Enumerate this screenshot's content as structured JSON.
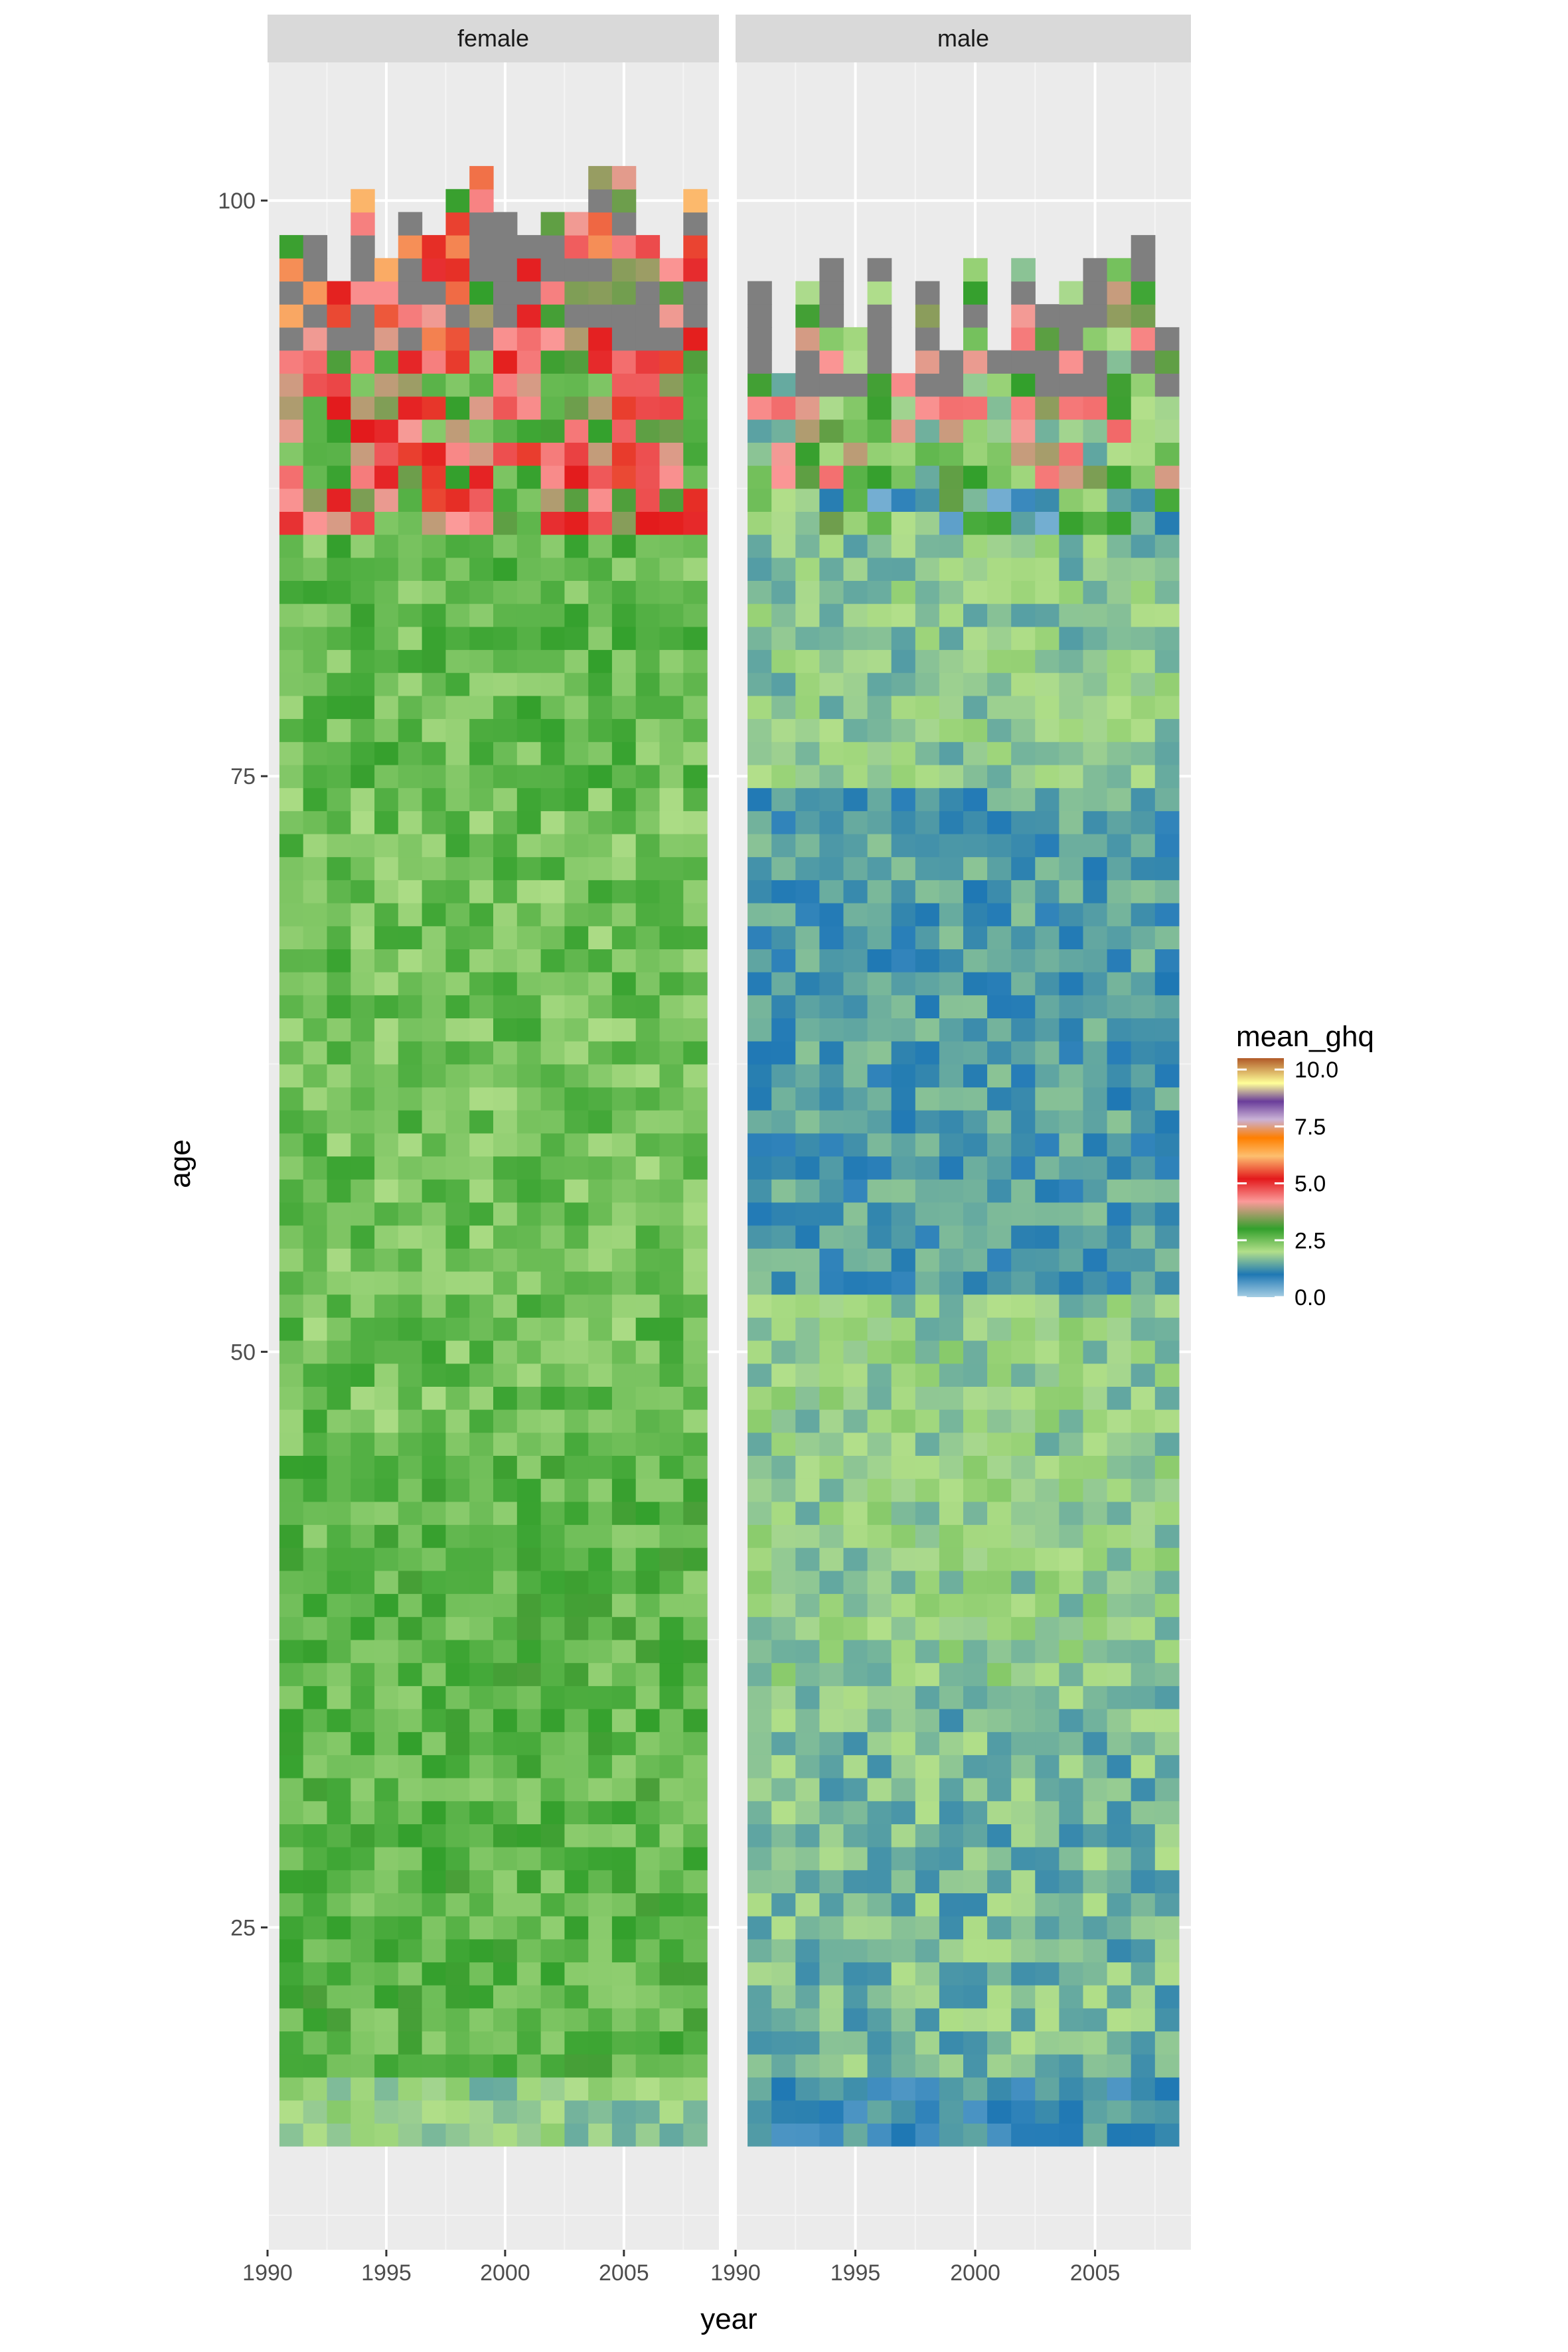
{
  "chart_data": {
    "type": "heatmap",
    "facet_by": "sex",
    "facets": [
      "female",
      "male"
    ],
    "x_label": "year",
    "y_label": "age",
    "x_range": [
      1990,
      2009
    ],
    "y_range": [
      11,
      106
    ],
    "x_ticks": [
      1990,
      1995,
      2000,
      2005
    ],
    "x_tick_labels": [
      "1990",
      "1995",
      "2000",
      "2005"
    ],
    "y_ticks": [
      25,
      50,
      75,
      100
    ],
    "y_tick_labels": [
      "25",
      "50",
      "75",
      "100"
    ],
    "years": [
      1991,
      1992,
      1993,
      1994,
      1995,
      1996,
      1997,
      1998,
      1999,
      2000,
      2001,
      2002,
      2003,
      2004,
      2005,
      2006,
      2007,
      2008
    ],
    "age_min": 16,
    "age_max": 101,
    "grid": true,
    "panel_background": "#ebebeb",
    "strip_background": "#d9d9d9",
    "legend": {
      "title": "mean_ghq",
      "position": "right",
      "labels": [
        "10.0",
        "7.5",
        "5.0",
        "2.5",
        "0.0"
      ],
      "ticks": [
        10.0,
        7.5,
        5.0,
        2.5,
        0.0
      ],
      "range": [
        0,
        10.5
      ],
      "palette": "Paired",
      "stops": [
        {
          "value": 0.0,
          "color": "#a6cee3"
        },
        {
          "value": 1.0,
          "color": "#1f78b4"
        },
        {
          "value": 2.0,
          "color": "#b2df8a"
        },
        {
          "value": 3.0,
          "color": "#33a02c"
        },
        {
          "value": 4.2,
          "color": "#fb9a99"
        },
        {
          "value": 5.2,
          "color": "#e31a1c"
        },
        {
          "value": 6.2,
          "color": "#fdbf6f"
        },
        {
          "value": 7.0,
          "color": "#ff7f00"
        },
        {
          "value": 7.8,
          "color": "#cab2d6"
        },
        {
          "value": 8.6,
          "color": "#6a3d9a"
        },
        {
          "value": 9.4,
          "color": "#ffff99"
        },
        {
          "value": 10.5,
          "color": "#b15928"
        }
      ]
    },
    "na_color": "#7f7f7f",
    "cell_colors": {
      "female": {
        "baseline_low_ages": "#9fd38a",
        "baseline_mid_ages": "#5fb446",
        "baseline_high_ages": "#e58c7c"
      },
      "male": {
        "baseline_low_ages": "#7aa9c8",
        "baseline_mid_ages": "#a7d594",
        "baseline_high_ages": "#3f88bf"
      }
    },
    "series": [
      {
        "facet": "female",
        "description_of_pattern": "mostly green (approx. 2.2-3.2) across ages 16-85; light blue/green at ages 16-18; reds, oranges and pinks (approx. 4-7) at ages 86-97; grey (missing) cells at ages 94-101",
        "typical_value_by_age_band": [
          {
            "ages": [
              16,
              18
            ],
            "value": 1.9
          },
          {
            "ages": [
              19,
              45
            ],
            "value": 2.7
          },
          {
            "ages": [
              46,
              74
            ],
            "value": 2.5
          },
          {
            "ages": [
              75,
              85
            ],
            "value": 2.6
          },
          {
            "ages": [
              86,
              93
            ],
            "value": 3.9
          },
          {
            "ages": [
              94,
              101
            ],
            "value": 4.6
          }
        ]
      },
      {
        "facet": "male",
        "description_of_pattern": "blue-green (approx. 1.2-2.2) across most ages; bluest around ages 55-72; greener at ages 36-52; mixed warm colours at ages 86-96; grey (missing) cells at ages 92-98",
        "typical_value_by_age_band": [
          {
            "ages": [
              16,
              18
            ],
            "value": 1.1
          },
          {
            "ages": [
              19,
              35
            ],
            "value": 1.6
          },
          {
            "ages": [
              36,
              52
            ],
            "value": 1.9
          },
          {
            "ages": [
              53,
              74
            ],
            "value": 1.3
          },
          {
            "ages": [
              75,
              87
            ],
            "value": 1.8
          },
          {
            "ages": [
              88,
              98
            ],
            "value": 3.0
          }
        ]
      }
    ]
  }
}
